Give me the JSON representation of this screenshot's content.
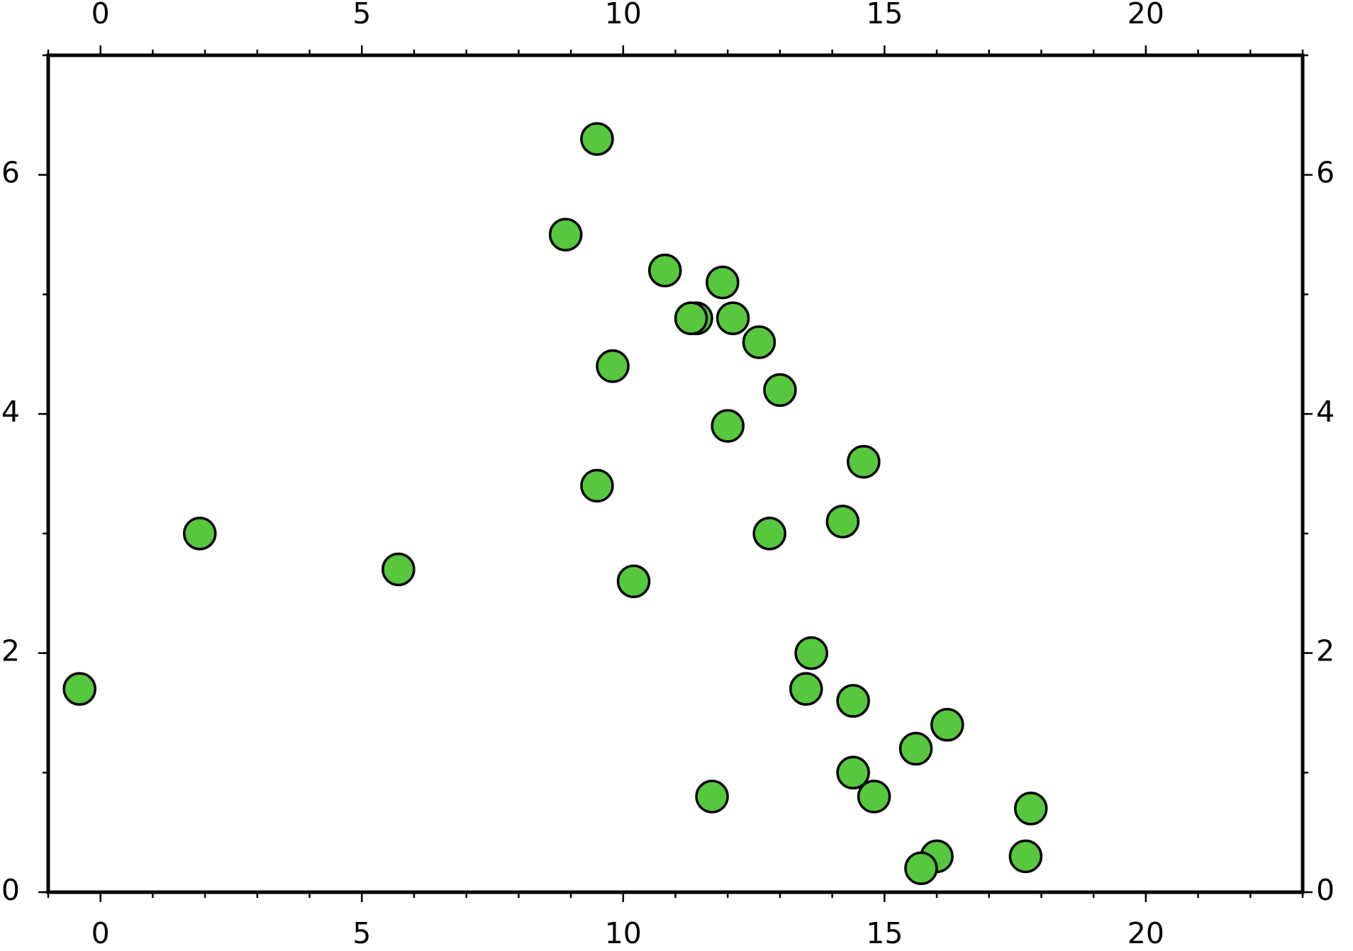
{
  "chart_data": {
    "type": "scatter",
    "x": [
      9.5,
      8.9,
      10.8,
      11.9,
      11.4,
      11.3,
      12.1,
      12.6,
      9.8,
      13.0,
      12.0,
      14.6,
      9.5,
      14.2,
      1.9,
      12.8,
      5.7,
      10.2,
      13.6,
      -0.4,
      13.5,
      14.4,
      16.2,
      15.6,
      14.4,
      14.8,
      11.7,
      17.8,
      16.0,
      17.7,
      15.7
    ],
    "values": [
      6.3,
      5.5,
      5.2,
      5.1,
      4.8,
      4.8,
      4.8,
      4.6,
      4.4,
      4.2,
      3.9,
      3.6,
      3.4,
      3.1,
      3.0,
      3.0,
      2.7,
      2.6,
      2.0,
      1.7,
      1.7,
      1.6,
      1.4,
      1.2,
      1.0,
      0.8,
      0.8,
      0.7,
      0.3,
      0.3,
      0.2
    ],
    "color": "#57c83d",
    "xlim": [
      -1,
      23
    ],
    "xticks": [
      0,
      5,
      10,
      15,
      20
    ],
    "x_minor_ticks": [
      -1,
      0,
      1,
      2,
      3,
      4,
      5,
      6,
      7,
      8,
      9,
      10,
      11,
      12,
      13,
      14,
      15,
      16,
      17,
      18,
      19,
      20,
      21,
      22,
      23
    ],
    "ylim": [
      0,
      7
    ],
    "yticks": [
      0,
      2,
      4,
      6
    ],
    "y_minor_ticks": [
      0,
      1,
      2,
      3,
      4,
      5,
      6,
      7
    ]
  }
}
